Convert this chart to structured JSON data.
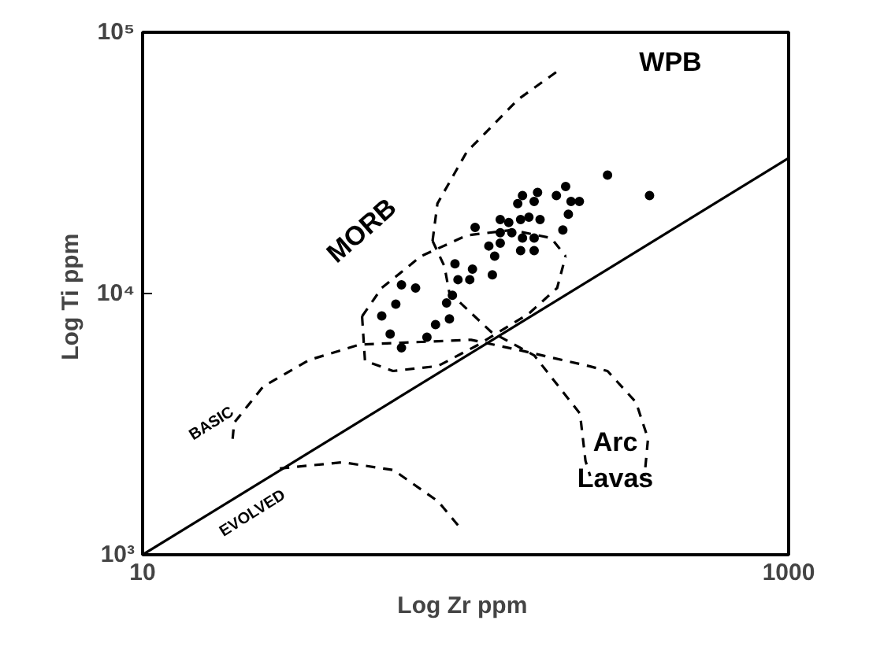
{
  "chart_data": {
    "type": "scatter",
    "xlabel": "Log Zr  ppm",
    "ylabel": "Log Ti  ppm",
    "log": "xy",
    "grid": false,
    "xlim": [
      10,
      1000
    ],
    "ylim": [
      1000,
      100000
    ],
    "xticks": [
      10,
      1000
    ],
    "yticks": [
      {
        "value": 1000,
        "label": "10³"
      },
      {
        "value": 10000,
        "label": "10⁴"
      },
      {
        "value": 100000,
        "label": "10⁵"
      }
    ],
    "series": [
      {
        "color": "#000000",
        "marker": "circle",
        "x": [
          204,
          167,
          150,
          145,
          163,
          191,
          212,
          225,
          208,
          170,
          157,
          148,
          136,
          128,
          107,
          128,
          139,
          128,
          118,
          123,
          150,
          163,
          148,
          163,
          200,
          92.7,
          105,
          103,
          94.7,
          121,
          91,
          87.3,
          70,
          63.3,
          60.8,
          55,
          58.4,
          63.3,
          75.9,
          80.7,
          89.1,
          275,
          371
        ],
        "values": [
          25700,
          24400,
          23700,
          22100,
          22500,
          23700,
          22500,
          22500,
          20100,
          19200,
          19600,
          19200,
          18700,
          19200,
          17900,
          17100,
          17100,
          15600,
          15200,
          13900,
          16300,
          16300,
          14600,
          14600,
          17500,
          13000,
          12400,
          11300,
          11300,
          11800,
          9850,
          9200,
          10500,
          10800,
          9100,
          8200,
          7000,
          6200,
          6800,
          7600,
          8000,
          28400,
          23700
        ]
      },
      {
        "type": "line",
        "color": "#000000",
        "marker": "none",
        "line_style": "solid",
        "x": [
          10,
          1000
        ],
        "values": [
          1000,
          33000
        ]
      },
      {
        "type": "line",
        "color": "#000000",
        "marker": "none",
        "line_style": "dashed",
        "x": [
          79,
          81.8,
          101,
          113,
          145,
          195
        ],
        "values": [
          15900,
          22100,
          35000,
          40200,
          55200,
          71800
        ]
      },
      {
        "type": "line",
        "color": "#000000",
        "marker": "none",
        "line_style": "dashed",
        "x": [
          79,
          86,
          89,
          104,
          120,
          163,
          226,
          235,
          243
        ],
        "values": [
          15900,
          12700,
          10100,
          8420,
          7130,
          5800,
          3470,
          2290,
          2000
        ]
      },
      {
        "type": "line",
        "color": "#000000",
        "marker": "none",
        "line_style": "dashed",
        "x": [
          47.8,
          48.8,
          59.6,
          82.2,
          109,
          157,
          192,
          204
        ],
        "values": [
          8180,
          5530,
          5050,
          5280,
          6350,
          8380,
          10500,
          13900
        ]
      },
      {
        "type": "line",
        "color": "#000000",
        "marker": "none",
        "line_style": "dashed",
        "x": [
          47.8,
          55,
          72.8,
          101,
          139,
          184,
          204
        ],
        "values": [
          8180,
          10500,
          13900,
          16700,
          17500,
          16300,
          13900
        ]
      },
      {
        "type": "line",
        "color": "#000000",
        "marker": "none",
        "line_style": "dashed",
        "x": [
          19,
          19.2,
          23.6,
          32.7,
          47,
          104,
          150,
          243,
          275,
          337,
          367,
          358
        ],
        "values": [
          2780,
          3200,
          4400,
          5560,
          6380,
          6650,
          6030,
          5260,
          5050,
          3830,
          2780,
          2000
        ]
      },
      {
        "type": "line",
        "color": "#000000",
        "marker": "none",
        "line_style": "dashed",
        "x": [
          26.6,
          41.6,
          59.8,
          82.2,
          96.6
        ],
        "values": [
          2140,
          2260,
          2110,
          1600,
          1260
        ]
      }
    ],
    "annotations": [
      "WPB",
      "MORB",
      "Arc Lavas",
      "BASIC",
      "EVOLVED"
    ]
  }
}
